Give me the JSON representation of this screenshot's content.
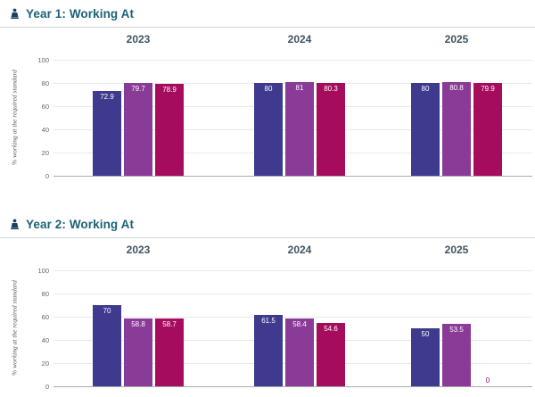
{
  "colors": {
    "bar1": "#3e3a8e",
    "bar2": "#8a3a97",
    "bar3": "#a60c5e",
    "title": "#1b6279",
    "icon": "#1d3f66"
  },
  "chart_data": [
    {
      "type": "bar",
      "title": "Year 1: Working At",
      "categories": [
        "2023",
        "2024",
        "2025"
      ],
      "series": [
        {
          "color": "#3e3a8e",
          "values": [
            72.9,
            80,
            80
          ]
        },
        {
          "color": "#8a3a97",
          "values": [
            79.7,
            81,
            80.8
          ]
        },
        {
          "color": "#a60c5e",
          "values": [
            78.9,
            80.3,
            79.9
          ]
        }
      ],
      "xlabel": "",
      "ylabel": "% working at the required standard",
      "ylim": [
        0,
        100
      ],
      "yticks": [
        0,
        20,
        40,
        60,
        80,
        100
      ],
      "grid": true,
      "legend": false,
      "value_labels": "inside-top-white"
    },
    {
      "type": "bar",
      "title": "Year 2: Working At",
      "categories": [
        "2023",
        "2024",
        "2025"
      ],
      "series": [
        {
          "color": "#3e3a8e",
          "values": [
            70,
            61.5,
            50
          ]
        },
        {
          "color": "#8a3a97",
          "values": [
            58.8,
            58.4,
            53.5
          ]
        },
        {
          "color": "#a60c5e",
          "values": [
            58.7,
            54.6,
            0
          ]
        }
      ],
      "xlabel": "",
      "ylabel": "% working at the required standard",
      "ylim": [
        0,
        100
      ],
      "yticks": [
        0,
        20,
        40,
        60,
        80,
        100
      ],
      "grid": true,
      "legend": false,
      "value_labels": "inside-top-white"
    }
  ]
}
